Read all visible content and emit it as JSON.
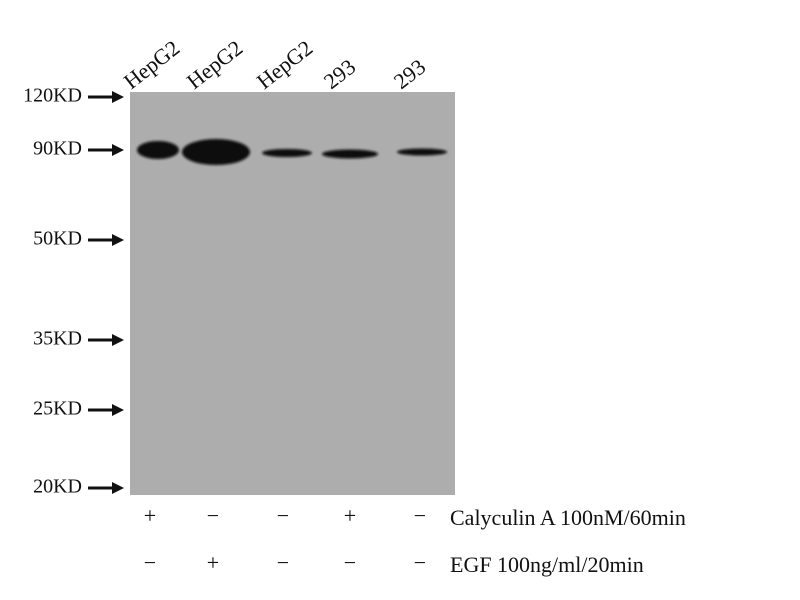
{
  "lanes": [
    "HepG2",
    "HepG2",
    "HepG2",
    "293",
    "293"
  ],
  "markers": [
    "120KD",
    "90KD",
    "50KD",
    "35KD",
    "25KD",
    "20KD"
  ],
  "treatments": [
    {
      "label": "Calyculin A 100nM/60min",
      "signs": [
        "+",
        "−",
        "−",
        "+",
        "−"
      ]
    },
    {
      "label": "EGF 100ng/ml/20min",
      "signs": [
        "−",
        "+",
        "−",
        "−",
        "−"
      ]
    }
  ]
}
